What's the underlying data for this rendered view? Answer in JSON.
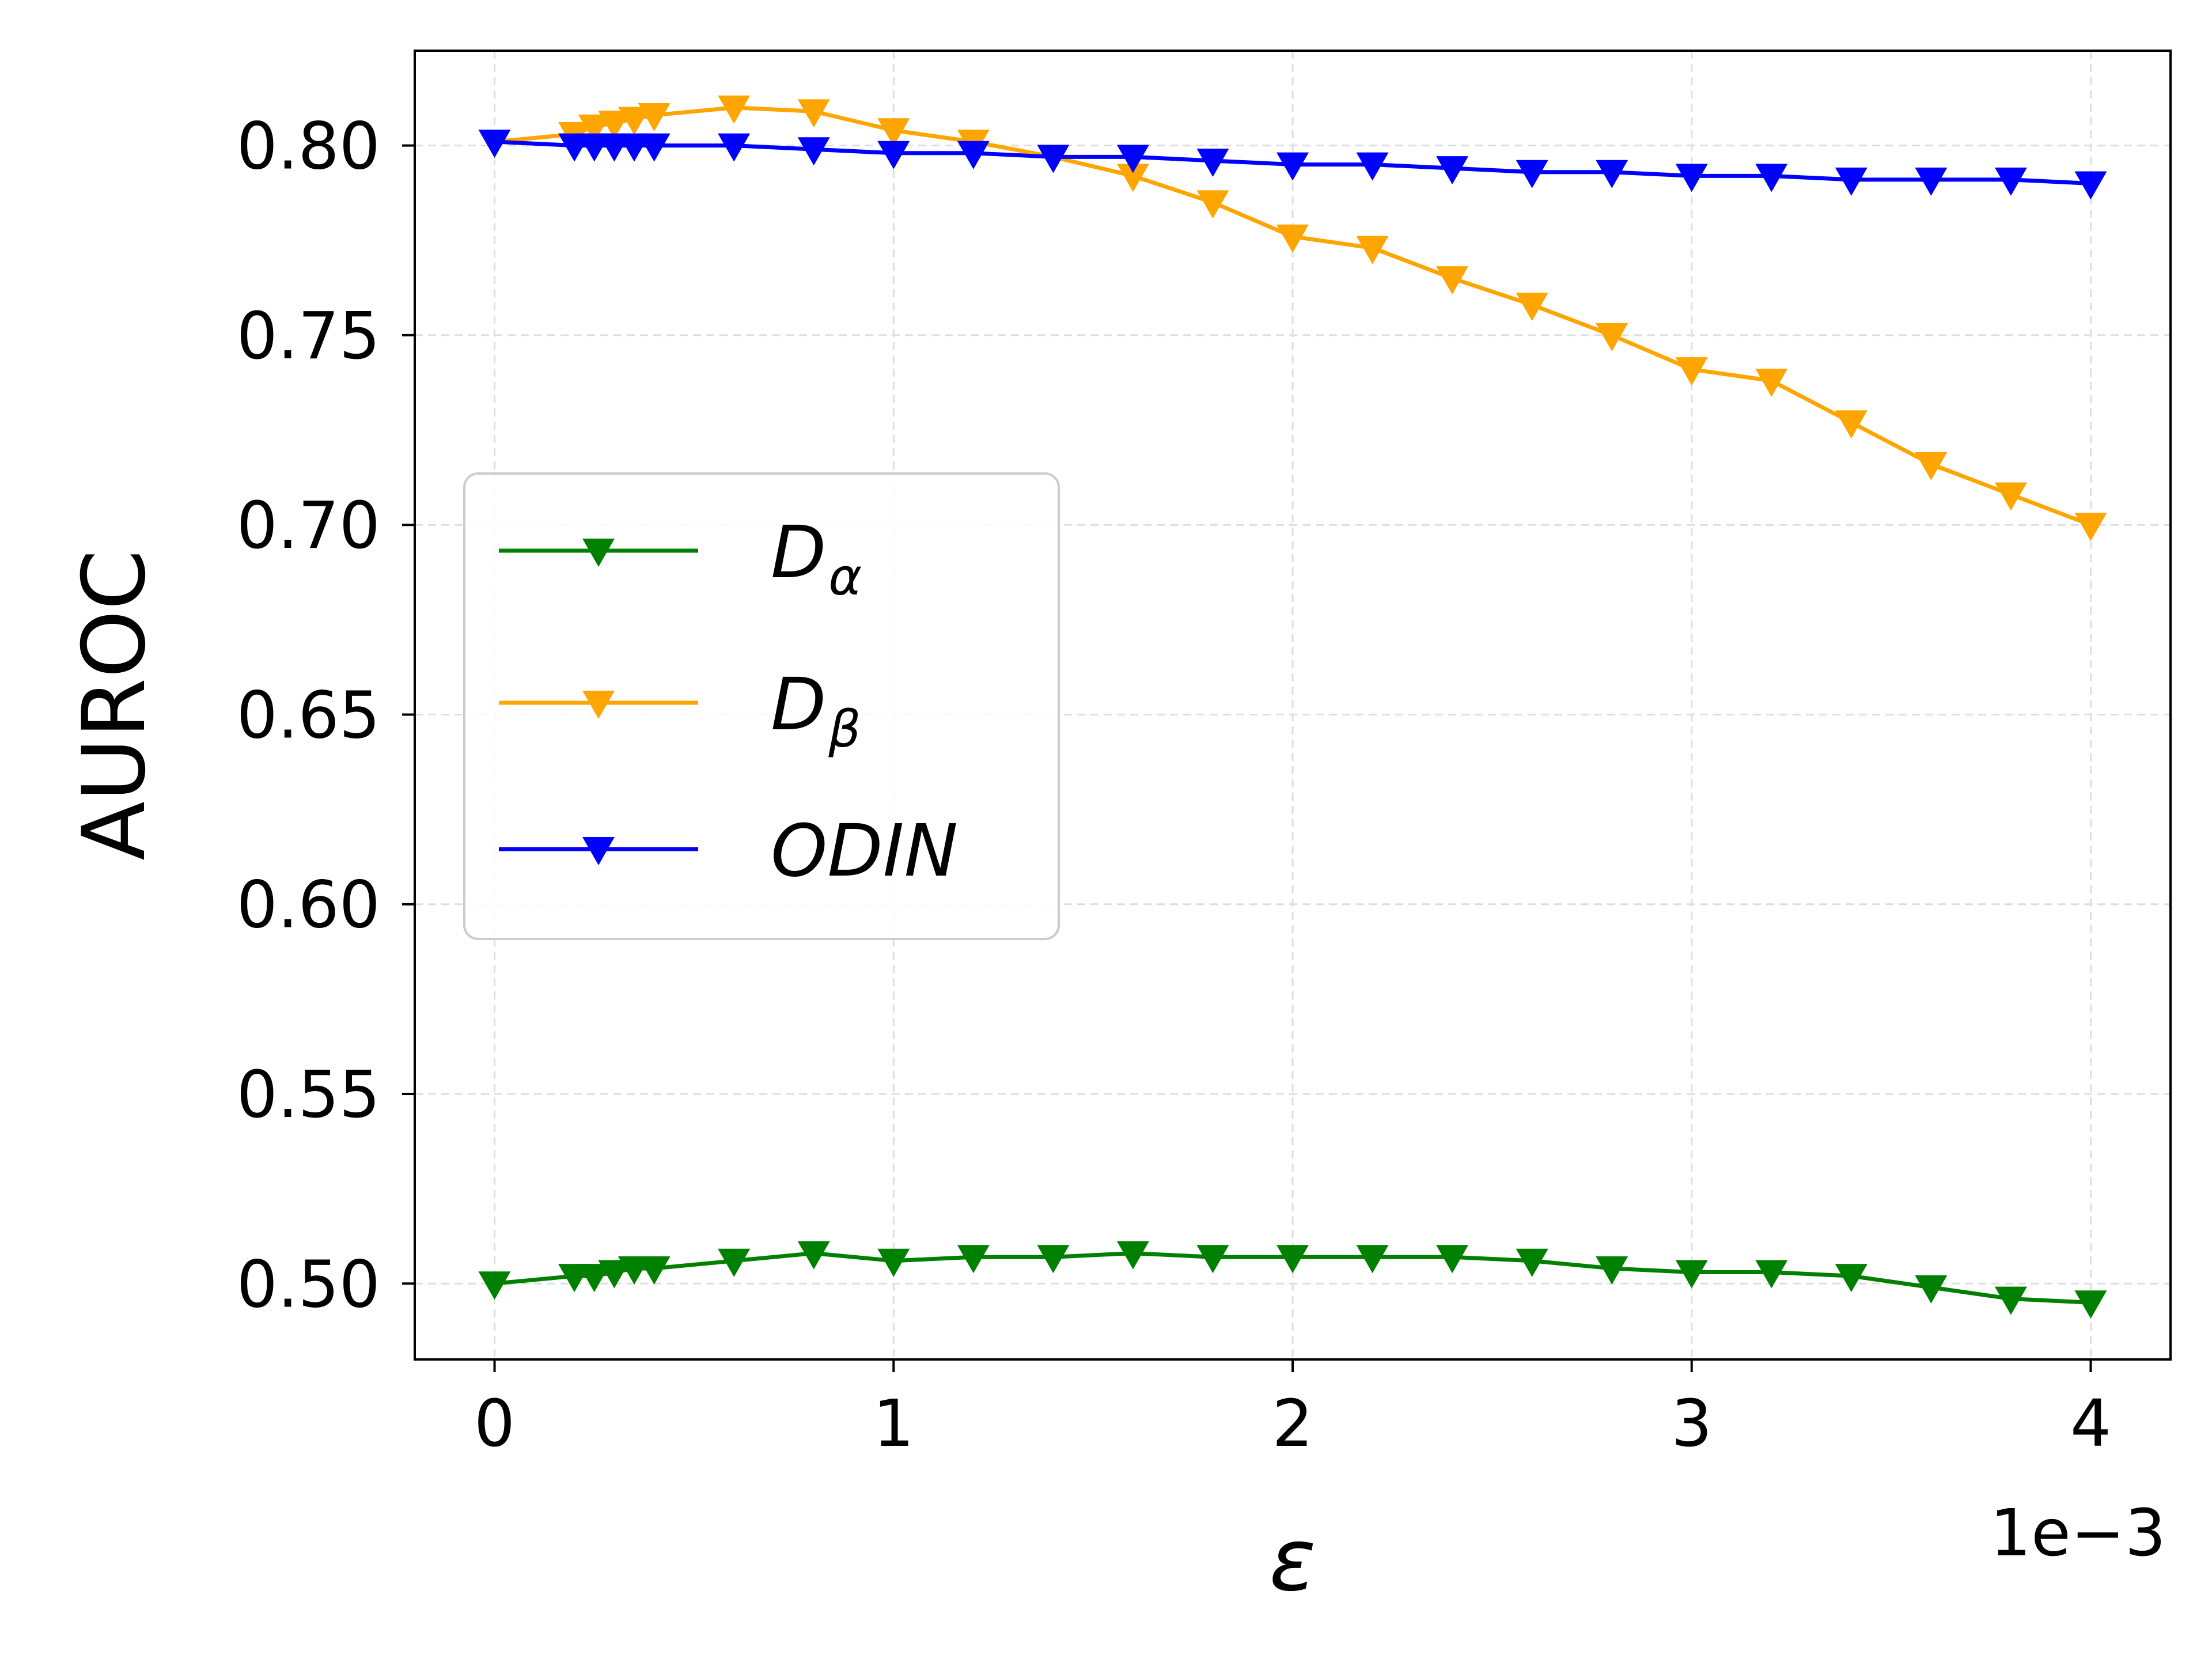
{
  "chart_data": {
    "type": "line",
    "title": "",
    "xlabel": "ε",
    "ylabel": "AUROC",
    "x_offset_label": "1e−3",
    "x_ticks": [
      "0",
      "1",
      "2",
      "3",
      "4"
    ],
    "x_tick_values": [
      0,
      1,
      2,
      3,
      4
    ],
    "y_ticks": [
      "0.50",
      "0.55",
      "0.60",
      "0.65",
      "0.70",
      "0.75",
      "0.80"
    ],
    "y_tick_values": [
      0.5,
      0.55,
      0.6,
      0.65,
      0.7,
      0.75,
      0.8
    ],
    "xlim": [
      -0.2,
      4.2
    ],
    "ylim": [
      0.48,
      0.825
    ],
    "grid": true,
    "legend_position": "center-left",
    "x": [
      0,
      0.2,
      0.25,
      0.3,
      0.35,
      0.4,
      0.6,
      0.8,
      1.0,
      1.2,
      1.4,
      1.6,
      1.8,
      2.0,
      2.2,
      2.4,
      2.6,
      2.8,
      3.0,
      3.2,
      3.4,
      3.6,
      3.8,
      4.0
    ],
    "series": [
      {
        "name": "D",
        "subscript": "α",
        "color": "#008000",
        "marker": "triangle-down",
        "values": [
          0.5,
          0.502,
          0.502,
          0.503,
          0.504,
          0.504,
          0.506,
          0.508,
          0.506,
          0.507,
          0.507,
          0.508,
          0.507,
          0.507,
          0.507,
          0.507,
          0.506,
          0.504,
          0.503,
          0.503,
          0.502,
          0.499,
          0.496,
          0.495
        ]
      },
      {
        "name": "D",
        "subscript": "β",
        "color": "#ffa500",
        "marker": "triangle-down",
        "values": [
          0.801,
          0.803,
          0.805,
          0.806,
          0.807,
          0.808,
          0.81,
          0.809,
          0.804,
          0.801,
          0.797,
          0.792,
          0.785,
          0.776,
          0.773,
          0.765,
          0.758,
          0.75,
          0.741,
          0.738,
          0.727,
          0.716,
          0.708,
          0.7
        ]
      },
      {
        "name": "ODIN",
        "subscript": "",
        "color": "#0000ff",
        "marker": "triangle-down",
        "values": [
          0.801,
          0.8,
          0.8,
          0.8,
          0.8,
          0.8,
          0.8,
          0.799,
          0.798,
          0.798,
          0.797,
          0.797,
          0.796,
          0.795,
          0.795,
          0.794,
          0.793,
          0.793,
          0.792,
          0.792,
          0.791,
          0.791,
          0.791,
          0.79
        ]
      }
    ]
  }
}
